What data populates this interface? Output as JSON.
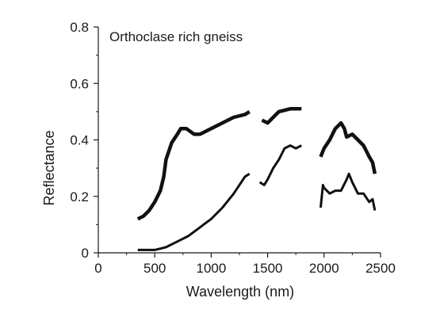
{
  "chart_data": {
    "type": "line",
    "title": "",
    "annotation": "Orthoclase rich gneiss",
    "xlabel": "Wavelength (nm)",
    "ylabel": "Reflectance",
    "xlim": [
      0,
      2500
    ],
    "ylim": [
      0,
      0.8
    ],
    "x_ticks": [
      0,
      500,
      1000,
      1500,
      2000,
      2500
    ],
    "x_tick_labels": [
      "0",
      "500",
      "1000",
      "1500",
      "2000",
      "2500"
    ],
    "y_ticks": [
      0,
      0.2,
      0.4,
      0.6,
      0.8
    ],
    "y_tick_labels": [
      "0",
      "0.2",
      "0.4",
      "0.6",
      "0.8"
    ],
    "grid": false,
    "legend": "none",
    "line_color": "#111111",
    "series": [
      {
        "segments": [
          [
            [
              350,
              0.12
            ],
            [
              400,
              0.13
            ],
            [
              450,
              0.15
            ],
            [
              500,
              0.18
            ],
            [
              550,
              0.22
            ],
            [
              580,
              0.27
            ],
            [
              600,
              0.33
            ],
            [
              650,
              0.39
            ],
            [
              700,
              0.42
            ],
            [
              730,
              0.44
            ],
            [
              780,
              0.44
            ],
            [
              850,
              0.42
            ],
            [
              900,
              0.42
            ],
            [
              1000,
              0.44
            ],
            [
              1100,
              0.46
            ],
            [
              1200,
              0.48
            ],
            [
              1300,
              0.49
            ],
            [
              1340,
              0.5
            ]
          ],
          [
            [
              1450,
              0.47
            ],
            [
              1500,
              0.46
            ],
            [
              1550,
              0.48
            ],
            [
              1600,
              0.5
            ],
            [
              1700,
              0.51
            ],
            [
              1800,
              0.51
            ]
          ],
          [
            [
              1970,
              0.34
            ],
            [
              2000,
              0.37
            ],
            [
              2050,
              0.4
            ],
            [
              2100,
              0.44
            ],
            [
              2150,
              0.46
            ],
            [
              2180,
              0.44
            ],
            [
              2200,
              0.41
            ],
            [
              2250,
              0.42
            ],
            [
              2300,
              0.4
            ],
            [
              2350,
              0.38
            ],
            [
              2400,
              0.34
            ],
            [
              2430,
              0.32
            ],
            [
              2450,
              0.28
            ]
          ]
        ],
        "stroke_width": 4.5
      },
      {
        "segments": [
          [
            [
              350,
              0.01
            ],
            [
              500,
              0.01
            ],
            [
              600,
              0.02
            ],
            [
              700,
              0.04
            ],
            [
              800,
              0.06
            ],
            [
              900,
              0.09
            ],
            [
              1000,
              0.12
            ],
            [
              1100,
              0.16
            ],
            [
              1200,
              0.21
            ],
            [
              1300,
              0.27
            ],
            [
              1340,
              0.28
            ]
          ],
          [
            [
              1430,
              0.25
            ],
            [
              1470,
              0.24
            ],
            [
              1500,
              0.26
            ],
            [
              1550,
              0.3
            ],
            [
              1600,
              0.33
            ],
            [
              1650,
              0.37
            ],
            [
              1700,
              0.38
            ],
            [
              1750,
              0.37
            ],
            [
              1800,
              0.38
            ]
          ],
          [
            [
              1970,
              0.16
            ],
            [
              1990,
              0.24
            ],
            [
              2000,
              0.23
            ],
            [
              2050,
              0.21
            ],
            [
              2100,
              0.22
            ],
            [
              2150,
              0.22
            ],
            [
              2200,
              0.26
            ],
            [
              2220,
              0.28
            ],
            [
              2250,
              0.25
            ],
            [
              2300,
              0.21
            ],
            [
              2350,
              0.21
            ],
            [
              2400,
              0.18
            ],
            [
              2430,
              0.19
            ],
            [
              2450,
              0.15
            ]
          ]
        ],
        "stroke_width": 3
      }
    ]
  }
}
